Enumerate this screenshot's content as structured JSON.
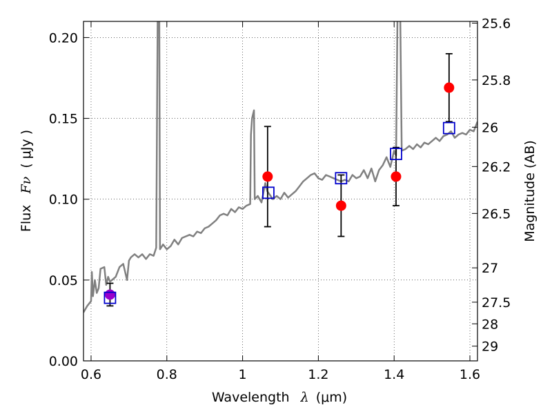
{
  "chart_data": {
    "type": "scatter",
    "title": "",
    "xlabel": "Wavelength",
    "xlabel_symbol": "λ",
    "xlabel_unit": "(μm)",
    "ylabel": "Flux",
    "ylabel_symbol": "Fν",
    "ylabel_unit": "( μJy )",
    "right_ylabel": "Magnitude (AB)",
    "xlim": [
      0.58,
      1.62
    ],
    "ylim": [
      0.0,
      0.21
    ],
    "grid": true,
    "legend": "none",
    "x_ticks": [
      {
        "value": 0.6,
        "label": "0.6"
      },
      {
        "value": 0.8,
        "label": "0.8"
      },
      {
        "value": 1.0,
        "label": "1"
      },
      {
        "value": 1.2,
        "label": "1.2"
      },
      {
        "value": 1.4,
        "label": "1.4"
      },
      {
        "value": 1.6,
        "label": "1.6"
      }
    ],
    "y_ticks": [
      {
        "value": 0.0,
        "label": "0.00"
      },
      {
        "value": 0.05,
        "label": "0.05"
      },
      {
        "value": 0.1,
        "label": "0.10"
      },
      {
        "value": 0.15,
        "label": "0.15"
      },
      {
        "value": 0.2,
        "label": "0.20"
      }
    ],
    "mag_ticks": [
      {
        "value": 25.6,
        "label": "25.6"
      },
      {
        "value": 25.8,
        "label": "25.8"
      },
      {
        "value": 26.0,
        "label": "26"
      },
      {
        "value": 26.2,
        "label": "26.2"
      },
      {
        "value": 26.5,
        "label": "26.5"
      },
      {
        "value": 27.0,
        "label": "27"
      },
      {
        "value": 27.5,
        "label": "27.5"
      },
      {
        "value": 28.0,
        "label": "28"
      },
      {
        "value": 29.0,
        "label": "29"
      }
    ],
    "series": [
      {
        "kind": "line",
        "color": "#808080",
        "points": [
          [
            0.58,
            0.03
          ],
          [
            0.59,
            0.034
          ],
          [
            0.6,
            0.037
          ],
          [
            0.602,
            0.055
          ],
          [
            0.605,
            0.04
          ],
          [
            0.61,
            0.05
          ],
          [
            0.615,
            0.042
          ],
          [
            0.62,
            0.045
          ],
          [
            0.625,
            0.057
          ],
          [
            0.635,
            0.058
          ],
          [
            0.64,
            0.047
          ],
          [
            0.645,
            0.052
          ],
          [
            0.65,
            0.049
          ],
          [
            0.655,
            0.05
          ],
          [
            0.665,
            0.052
          ],
          [
            0.675,
            0.058
          ],
          [
            0.685,
            0.06
          ],
          [
            0.695,
            0.05
          ],
          [
            0.7,
            0.062
          ],
          [
            0.705,
            0.064
          ],
          [
            0.715,
            0.066
          ],
          [
            0.725,
            0.064
          ],
          [
            0.735,
            0.066
          ],
          [
            0.745,
            0.063
          ],
          [
            0.755,
            0.066
          ],
          [
            0.765,
            0.065
          ],
          [
            0.772,
            0.07
          ],
          [
            0.776,
            0.22
          ],
          [
            0.78,
            0.22
          ],
          [
            0.782,
            0.069
          ],
          [
            0.79,
            0.072
          ],
          [
            0.8,
            0.069
          ],
          [
            0.81,
            0.071
          ],
          [
            0.82,
            0.075
          ],
          [
            0.83,
            0.072
          ],
          [
            0.84,
            0.076
          ],
          [
            0.85,
            0.077
          ],
          [
            0.86,
            0.078
          ],
          [
            0.87,
            0.077
          ],
          [
            0.88,
            0.08
          ],
          [
            0.89,
            0.079
          ],
          [
            0.9,
            0.082
          ],
          [
            0.91,
            0.083
          ],
          [
            0.92,
            0.085
          ],
          [
            0.93,
            0.087
          ],
          [
            0.94,
            0.09
          ],
          [
            0.95,
            0.091
          ],
          [
            0.96,
            0.09
          ],
          [
            0.97,
            0.094
          ],
          [
            0.98,
            0.092
          ],
          [
            0.99,
            0.095
          ],
          [
            1.0,
            0.094
          ],
          [
            1.01,
            0.096
          ],
          [
            1.02,
            0.097
          ],
          [
            1.022,
            0.14
          ],
          [
            1.025,
            0.15
          ],
          [
            1.03,
            0.155
          ],
          [
            1.032,
            0.1
          ],
          [
            1.04,
            0.102
          ],
          [
            1.05,
            0.098
          ],
          [
            1.06,
            0.11
          ],
          [
            1.065,
            0.105
          ],
          [
            1.08,
            0.1
          ],
          [
            1.09,
            0.102
          ],
          [
            1.1,
            0.1
          ],
          [
            1.11,
            0.104
          ],
          [
            1.12,
            0.101
          ],
          [
            1.13,
            0.103
          ],
          [
            1.14,
            0.105
          ],
          [
            1.15,
            0.108
          ],
          [
            1.16,
            0.111
          ],
          [
            1.17,
            0.113
          ],
          [
            1.18,
            0.115
          ],
          [
            1.19,
            0.116
          ],
          [
            1.2,
            0.113
          ],
          [
            1.21,
            0.112
          ],
          [
            1.22,
            0.115
          ],
          [
            1.23,
            0.114
          ],
          [
            1.24,
            0.113
          ],
          [
            1.25,
            0.112
          ],
          [
            1.26,
            0.111
          ],
          [
            1.27,
            0.112
          ],
          [
            1.28,
            0.111
          ],
          [
            1.29,
            0.115
          ],
          [
            1.3,
            0.113
          ],
          [
            1.31,
            0.114
          ],
          [
            1.32,
            0.118
          ],
          [
            1.33,
            0.113
          ],
          [
            1.34,
            0.119
          ],
          [
            1.35,
            0.111
          ],
          [
            1.36,
            0.118
          ],
          [
            1.37,
            0.121
          ],
          [
            1.38,
            0.126
          ],
          [
            1.39,
            0.12
          ],
          [
            1.4,
            0.13
          ],
          [
            1.405,
            0.127
          ],
          [
            1.41,
            0.24
          ],
          [
            1.415,
            0.24
          ],
          [
            1.42,
            0.13
          ],
          [
            1.43,
            0.131
          ],
          [
            1.44,
            0.133
          ],
          [
            1.45,
            0.131
          ],
          [
            1.46,
            0.134
          ],
          [
            1.47,
            0.132
          ],
          [
            1.48,
            0.135
          ],
          [
            1.49,
            0.134
          ],
          [
            1.5,
            0.136
          ],
          [
            1.51,
            0.138
          ],
          [
            1.52,
            0.136
          ],
          [
            1.53,
            0.139
          ],
          [
            1.54,
            0.14
          ],
          [
            1.55,
            0.142
          ],
          [
            1.56,
            0.138
          ],
          [
            1.57,
            0.14
          ],
          [
            1.58,
            0.141
          ],
          [
            1.59,
            0.14
          ],
          [
            1.6,
            0.143
          ],
          [
            1.61,
            0.142
          ],
          [
            1.62,
            0.148
          ]
        ]
      },
      {
        "kind": "points_with_errorbars",
        "marker": "circle",
        "color": "#ff0000",
        "points": [
          {
            "x": 1.066,
            "y": 0.114,
            "yerr": 0.031
          },
          {
            "x": 1.26,
            "y": 0.096,
            "yerr": 0.019
          },
          {
            "x": 1.405,
            "y": 0.114,
            "yerr": 0.018
          },
          {
            "x": 1.545,
            "y": 0.169,
            "yerr": 0.021
          }
        ]
      },
      {
        "kind": "points_with_errorbars",
        "marker": "circle",
        "color": "#9900cc",
        "points": [
          {
            "x": 0.65,
            "y": 0.041,
            "yerr": 0.007
          }
        ]
      },
      {
        "kind": "points",
        "marker": "square",
        "color": "#0000cc",
        "points": [
          {
            "x": 0.65,
            "y": 0.039
          },
          {
            "x": 1.068,
            "y": 0.104
          },
          {
            "x": 1.26,
            "y": 0.113
          },
          {
            "x": 1.405,
            "y": 0.128
          },
          {
            "x": 1.545,
            "y": 0.144
          }
        ]
      }
    ]
  }
}
